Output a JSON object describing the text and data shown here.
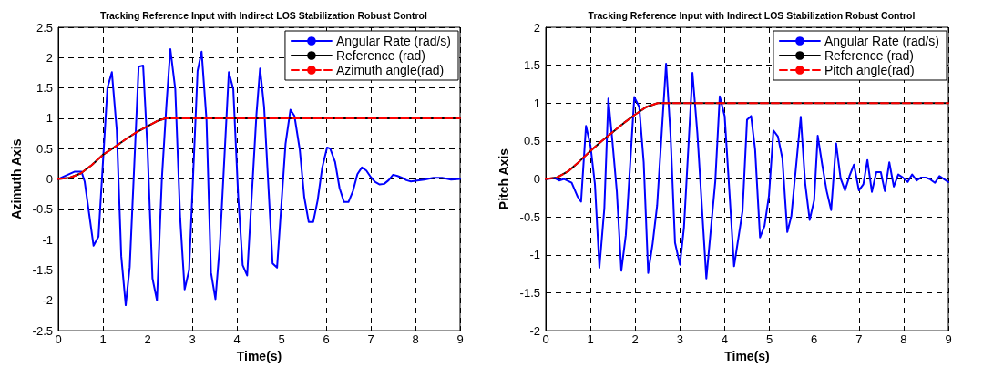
{
  "chart_data": [
    {
      "type": "line",
      "title": "Tracking Reference Input with Indirect LOS Stabilization Robust Control",
      "xlabel": "Time(s)",
      "ylabel": "Azimuth Axis",
      "xlim": [
        0,
        9
      ],
      "xticks": [
        0,
        1,
        2,
        3,
        4,
        5,
        6,
        7,
        8,
        9
      ],
      "ylim": [
        -2.5,
        2.5
      ],
      "yticks": [
        -2.5,
        -2,
        -1.5,
        -1,
        -0.5,
        0,
        0.5,
        1,
        1.5,
        2,
        2.5
      ],
      "grid": true,
      "legend": "top right",
      "marker": "none",
      "series": [
        {
          "name": "Angular Rate (rad/s)",
          "color": "#0000ff",
          "line_style": "solid",
          "x": [
            0,
            0.12,
            0.36,
            0.52,
            0.59,
            0.79,
            0.9,
            1.1,
            1.2,
            1.31,
            1.41,
            1.51,
            1.6,
            1.8,
            1.9,
            2.0,
            2.11,
            2.21,
            2.32,
            2.42,
            2.51,
            2.62,
            2.73,
            2.83,
            2.93,
            3.12,
            3.21,
            3.32,
            3.42,
            3.52,
            3.62,
            3.82,
            3.92,
            4.03,
            4.13,
            4.23,
            4.44,
            4.52,
            4.61,
            4.8,
            4.9,
            5.09,
            5.2,
            5.29,
            5.41,
            5.51,
            5.61,
            5.71,
            5.81,
            5.91,
            6.02,
            6.09,
            6.2,
            6.3,
            6.4,
            6.5,
            6.6,
            6.7,
            6.8,
            6.9,
            7.0,
            7.1,
            7.2,
            7.3,
            7.4,
            7.5,
            7.6,
            7.7,
            7.8,
            7.9,
            8.0,
            8.2,
            8.4,
            8.6,
            8.8,
            9.0
          ],
          "values": [
            0,
            0.04,
            0.12,
            0.12,
            -0.04,
            -1.1,
            -0.95,
            1.5,
            1.76,
            0.8,
            -1.27,
            -2.08,
            -1.45,
            1.85,
            1.87,
            0.47,
            -1.64,
            -2.0,
            0.0,
            1.2,
            2.14,
            1.48,
            -0.64,
            -1.82,
            -1.5,
            1.78,
            2.1,
            0.97,
            -1.54,
            -1.98,
            -1.07,
            1.76,
            1.48,
            -0.29,
            -1.42,
            -1.59,
            1.08,
            1.82,
            1.19,
            -1.39,
            -1.46,
            0.58,
            1.14,
            1.04,
            0.48,
            -0.3,
            -0.71,
            -0.71,
            -0.35,
            0.18,
            0.52,
            0.5,
            0.28,
            -0.15,
            -0.38,
            -0.38,
            -0.2,
            0.08,
            0.19,
            0.14,
            0.03,
            -0.05,
            -0.09,
            -0.08,
            -0.02,
            0.07,
            0.05,
            0.02,
            -0.02,
            -0.04,
            -0.03,
            -0.01,
            0.02,
            0.02,
            -0.01,
            0
          ]
        },
        {
          "name": "Reference (rad)",
          "color": "#000000",
          "line_style": "solid",
          "x": [
            0,
            0.25,
            0.5,
            0.75,
            1,
            1.25,
            1.5,
            1.75,
            2,
            2.2,
            2.4,
            9
          ],
          "values": [
            0,
            0.02,
            0.09,
            0.23,
            0.4,
            0.52,
            0.65,
            0.77,
            0.87,
            0.95,
            1,
            1
          ]
        },
        {
          "name": "Azimuth angle(rad)",
          "color": "#ff0000",
          "line_style": "dashed",
          "x": [
            0,
            0.25,
            0.5,
            0.75,
            1,
            1.25,
            1.5,
            1.75,
            2,
            2.2,
            2.4,
            9
          ],
          "values": [
            0,
            0.02,
            0.09,
            0.23,
            0.4,
            0.52,
            0.65,
            0.77,
            0.87,
            0.95,
            1,
            1
          ]
        }
      ]
    },
    {
      "type": "line",
      "title": "Tracking Reference Input with Indirect LOS Stabilization Robust Control",
      "xlabel": "Time(s)",
      "ylabel": "Pitch Axis",
      "xlim": [
        0,
        9
      ],
      "xticks": [
        0,
        1,
        2,
        3,
        4,
        5,
        6,
        7,
        8,
        9
      ],
      "ylim": [
        -2,
        2
      ],
      "yticks": [
        -2,
        -1.5,
        -1,
        -0.5,
        0,
        0.5,
        1,
        1.5,
        2
      ],
      "grid": true,
      "legend": "top right",
      "marker": "none",
      "series": [
        {
          "name": "Angular Rate (rad/s)",
          "color": "#0000ff",
          "line_style": "solid",
          "x": [
            0,
            0.2,
            0.3,
            0.41,
            0.58,
            0.71,
            0.79,
            0.9,
            1.0,
            1.1,
            1.2,
            1.31,
            1.4,
            1.49,
            1.59,
            1.69,
            1.79,
            1.98,
            2.09,
            2.19,
            2.29,
            2.39,
            2.49,
            2.69,
            2.79,
            2.89,
            3.0,
            3.09,
            3.28,
            3.39,
            3.59,
            3.79,
            3.89,
            4.0,
            4.21,
            4.4,
            4.5,
            4.59,
            4.68,
            4.79,
            4.89,
            4.99,
            5.09,
            5.19,
            5.29,
            5.4,
            5.49,
            5.7,
            5.8,
            5.9,
            6.0,
            6.08,
            6.18,
            6.28,
            6.38,
            6.49,
            6.59,
            6.69,
            6.79,
            6.89,
            7.0,
            7.1,
            7.19,
            7.29,
            7.39,
            7.49,
            7.58,
            7.68,
            7.78,
            7.88,
            7.98,
            8.09,
            8.19,
            8.29,
            8.39,
            8.49,
            8.58,
            8.7,
            8.8,
            8.9,
            9.0
          ],
          "values": [
            0,
            0.01,
            -0.02,
            0,
            -0.05,
            -0.23,
            -0.3,
            0.7,
            0.44,
            -0.07,
            -1.17,
            -0.39,
            1.06,
            0.5,
            -0.17,
            -1.21,
            -0.74,
            1.08,
            0.95,
            0.22,
            -1.24,
            -0.85,
            -0.35,
            1.52,
            0.58,
            -0.84,
            -1.13,
            -0.64,
            1.4,
            0.6,
            -1.31,
            -0.03,
            1.09,
            0.83,
            -1.15,
            -0.42,
            0.78,
            0.83,
            0.39,
            -0.77,
            -0.62,
            -0.22,
            0.64,
            0.56,
            0.27,
            -0.7,
            -0.49,
            0.82,
            -0.06,
            -0.54,
            -0.28,
            0.57,
            0.19,
            -0.16,
            -0.41,
            0.47,
            0.01,
            -0.15,
            0.04,
            0.19,
            -0.15,
            -0.07,
            0.25,
            -0.17,
            0.09,
            0.09,
            -0.16,
            0.22,
            -0.1,
            0.06,
            0.02,
            -0.04,
            0.06,
            -0.02,
            0.02,
            0.02,
            0,
            -0.05,
            0.04,
            0,
            -0.04
          ]
        },
        {
          "name": "Reference (rad)",
          "color": "#000000",
          "line_style": "solid",
          "x": [
            0,
            0.25,
            0.5,
            0.75,
            1,
            1.25,
            1.5,
            1.75,
            2,
            2.25,
            2.5,
            9
          ],
          "values": [
            0,
            0.02,
            0.1,
            0.23,
            0.37,
            0.5,
            0.62,
            0.74,
            0.85,
            0.95,
            1,
            1
          ]
        },
        {
          "name": "Pitch angle(rad)",
          "color": "#ff0000",
          "line_style": "dashed",
          "x": [
            0,
            0.25,
            0.5,
            0.75,
            1,
            1.25,
            1.5,
            1.75,
            2,
            2.25,
            2.5,
            9
          ],
          "values": [
            0,
            0.02,
            0.1,
            0.23,
            0.37,
            0.5,
            0.62,
            0.74,
            0.85,
            0.95,
            1,
            1
          ]
        }
      ]
    }
  ]
}
